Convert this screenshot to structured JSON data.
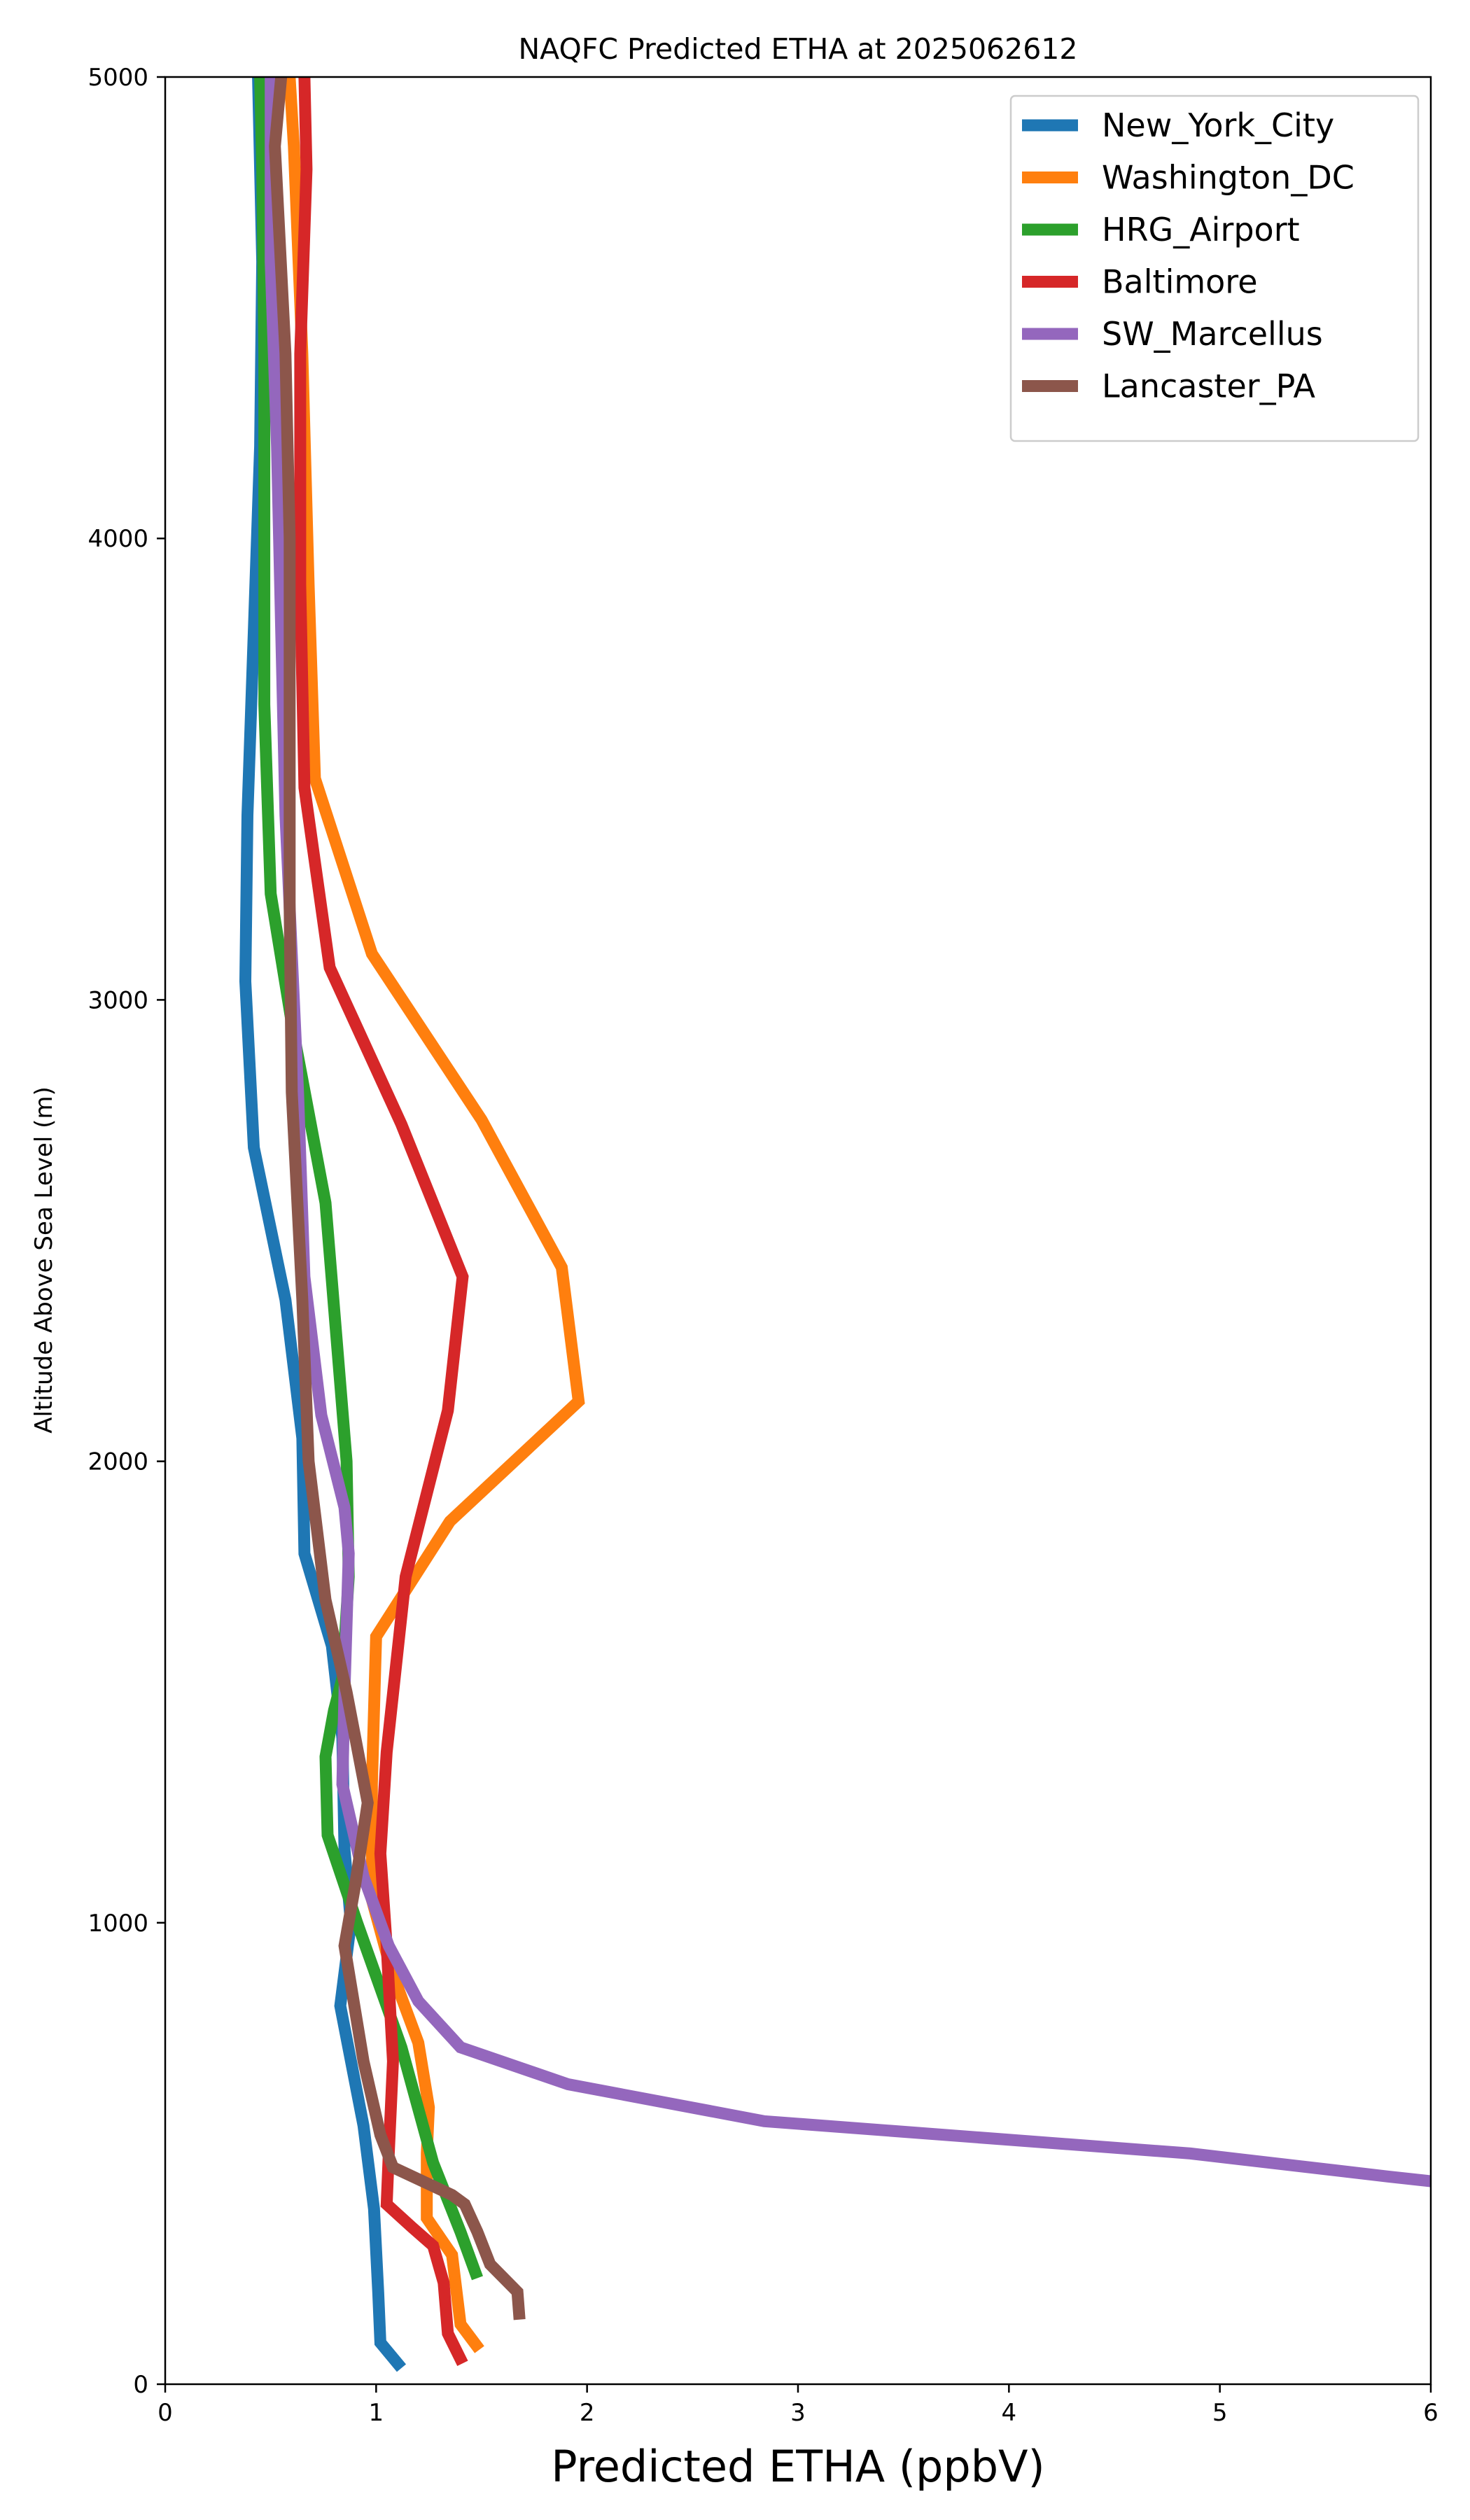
{
  "chart_data": {
    "type": "line",
    "title": "NAQFC Predicted ETHA at 2025062612",
    "xlabel": "Predicted ETHA (ppbV)",
    "ylabel": "Altitude Above Sea Level (m)",
    "xlim": [
      0,
      6
    ],
    "ylim": [
      0,
      5000
    ],
    "xticks": [
      0,
      1,
      2,
      3,
      4,
      5,
      6
    ],
    "yticks": [
      0,
      1000,
      2000,
      3000,
      4000,
      5000
    ],
    "grid": false,
    "legend_position": "top-right",
    "series": [
      {
        "name": "New_York_City",
        "color": "#1f77b4",
        "points": [
          [
            1.12,
            35
          ],
          [
            1.02,
            90
          ],
          [
            1.01,
            200
          ],
          [
            0.99,
            380
          ],
          [
            0.94,
            560
          ],
          [
            0.83,
            820
          ],
          [
            0.88,
            1000
          ],
          [
            0.85,
            1160
          ],
          [
            0.84,
            1400
          ],
          [
            0.79,
            1600
          ],
          [
            0.66,
            1800
          ],
          [
            0.65,
            2050
          ],
          [
            0.57,
            2350
          ],
          [
            0.42,
            2680
          ],
          [
            0.38,
            3040
          ],
          [
            0.39,
            3400
          ],
          [
            0.42,
            3800
          ],
          [
            0.45,
            4200
          ],
          [
            0.46,
            4600
          ],
          [
            0.44,
            5000
          ]
        ]
      },
      {
        "name": "Washington_DC",
        "color": "#ff7f0e",
        "points": [
          [
            1.49,
            75
          ],
          [
            1.4,
            130
          ],
          [
            1.36,
            280
          ],
          [
            1.24,
            360
          ],
          [
            1.24,
            500
          ],
          [
            1.25,
            600
          ],
          [
            1.2,
            740
          ],
          [
            1.07,
            900
          ],
          [
            0.98,
            1050
          ],
          [
            0.98,
            1300
          ],
          [
            1.0,
            1620
          ],
          [
            1.35,
            1870
          ],
          [
            1.96,
            2130
          ],
          [
            1.88,
            2420
          ],
          [
            1.5,
            2740
          ],
          [
            0.98,
            3100
          ],
          [
            0.71,
            3480
          ],
          [
            0.68,
            3900
          ],
          [
            0.65,
            4400
          ],
          [
            0.61,
            4850
          ],
          [
            0.59,
            5000
          ]
        ]
      },
      {
        "name": "HRG_Airport",
        "color": "#2ca02c",
        "points": [
          [
            1.48,
            230
          ],
          [
            1.4,
            330
          ],
          [
            1.27,
            480
          ],
          [
            1.12,
            730
          ],
          [
            0.91,
            1000
          ],
          [
            0.77,
            1190
          ],
          [
            0.76,
            1360
          ],
          [
            0.8,
            1460
          ],
          [
            0.84,
            1530
          ],
          [
            0.87,
            1750
          ],
          [
            0.86,
            2000
          ],
          [
            0.76,
            2560
          ],
          [
            0.6,
            2950
          ],
          [
            0.5,
            3230
          ],
          [
            0.47,
            3640
          ],
          [
            0.47,
            4000
          ],
          [
            0.47,
            4400
          ],
          [
            0.46,
            4800
          ],
          [
            0.45,
            5000
          ]
        ]
      },
      {
        "name": "Baltimore",
        "color": "#d62728",
        "points": [
          [
            1.41,
            45
          ],
          [
            1.34,
            110
          ],
          [
            1.32,
            220
          ],
          [
            1.27,
            300
          ],
          [
            1.17,
            340
          ],
          [
            1.05,
            390
          ],
          [
            1.06,
            500
          ],
          [
            1.08,
            700
          ],
          [
            1.05,
            950
          ],
          [
            1.02,
            1150
          ],
          [
            1.05,
            1370
          ],
          [
            1.14,
            1750
          ],
          [
            1.34,
            2110
          ],
          [
            1.41,
            2400
          ],
          [
            1.12,
            2730
          ],
          [
            0.78,
            3070
          ],
          [
            0.66,
            3460
          ],
          [
            0.64,
            3900
          ],
          [
            0.64,
            4400
          ],
          [
            0.67,
            4800
          ],
          [
            0.66,
            5000
          ]
        ]
      },
      {
        "name": "SW_Marcellus",
        "color": "#9467bd",
        "points": [
          [
            6.0,
            440
          ],
          [
            5.8,
            450
          ],
          [
            4.86,
            500
          ],
          [
            2.84,
            570
          ],
          [
            1.91,
            650
          ],
          [
            1.4,
            730
          ],
          [
            1.2,
            830
          ],
          [
            1.06,
            950
          ],
          [
            0.94,
            1100
          ],
          [
            0.84,
            1300
          ],
          [
            0.85,
            1500
          ],
          [
            0.87,
            1800
          ],
          [
            0.85,
            1900
          ],
          [
            0.74,
            2100
          ],
          [
            0.66,
            2400
          ],
          [
            0.63,
            2800
          ],
          [
            0.6,
            3100
          ],
          [
            0.57,
            3400
          ],
          [
            0.55,
            3800
          ],
          [
            0.53,
            4200
          ],
          [
            0.5,
            4600
          ],
          [
            0.5,
            5000
          ]
        ]
      },
      {
        "name": "Lancaster_PA",
        "color": "#8c564b",
        "points": [
          [
            1.68,
            140
          ],
          [
            1.67,
            200
          ],
          [
            1.54,
            260
          ],
          [
            1.48,
            330
          ],
          [
            1.42,
            390
          ],
          [
            1.36,
            410
          ],
          [
            1.08,
            470
          ],
          [
            1.02,
            540
          ],
          [
            0.94,
            700
          ],
          [
            0.85,
            950
          ],
          [
            0.9,
            1080
          ],
          [
            0.96,
            1260
          ],
          [
            0.86,
            1500
          ],
          [
            0.76,
            1700
          ],
          [
            0.68,
            2000
          ],
          [
            0.65,
            2350
          ],
          [
            0.6,
            2800
          ],
          [
            0.59,
            3200
          ],
          [
            0.59,
            3600
          ],
          [
            0.59,
            4000
          ],
          [
            0.57,
            4400
          ],
          [
            0.52,
            4850
          ],
          [
            0.55,
            5000
          ]
        ]
      }
    ]
  }
}
